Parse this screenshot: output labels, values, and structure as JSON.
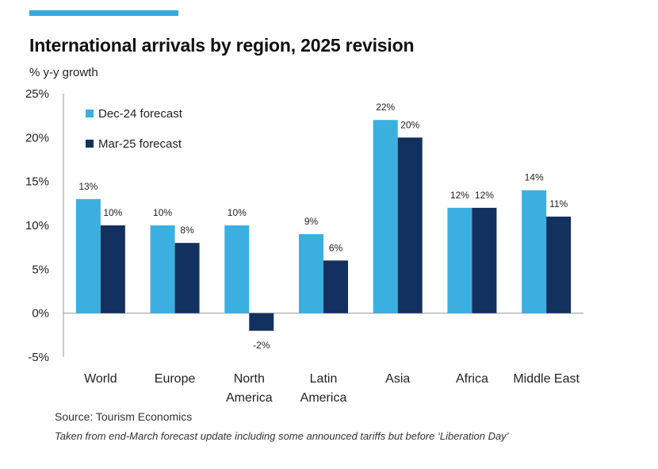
{
  "header": {
    "title": "International arrivals by region, 2025 revision",
    "subtitle": "% y-y growth"
  },
  "footer": {
    "source": "Source: Tourism Economics",
    "note": "Taken from end-March forecast update including some announced tariffs but before ‘Liberation Day’"
  },
  "colors": {
    "accent": "#35A9DA",
    "series_1": "#3BB0E0",
    "series_2": "#13315F"
  },
  "chart_data": {
    "type": "bar",
    "title": "International arrivals by region, 2025 revision",
    "ylabel": "% y-y growth",
    "categories": [
      [
        "World"
      ],
      [
        "Europe"
      ],
      [
        "North",
        "America"
      ],
      [
        "Latin",
        "America"
      ],
      [
        "Asia"
      ],
      [
        "Africa"
      ],
      [
        "Middle East"
      ]
    ],
    "series": [
      {
        "name": "Dec-24 forecast",
        "values": [
          13,
          10,
          10,
          9,
          22,
          12,
          14
        ],
        "labels": [
          "13%",
          "10%",
          "10%",
          "9%",
          "22%",
          "12%",
          "14%"
        ]
      },
      {
        "name": "Mar-25 forecast",
        "values": [
          10,
          8,
          -2,
          6,
          20,
          12,
          11
        ],
        "labels": [
          "10%",
          "8%",
          "-2%",
          "6%",
          "20%",
          "12%",
          "11%"
        ]
      }
    ],
    "yticks": [
      "25%",
      "20%",
      "15%",
      "10%",
      "5%",
      "0%",
      "-5%"
    ],
    "ylim": [
      -5,
      25
    ],
    "grid": false,
    "legend_position": "top-left"
  }
}
